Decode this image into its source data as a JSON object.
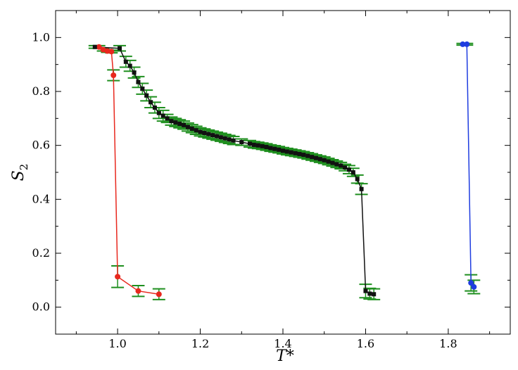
{
  "chart_data": {
    "type": "line",
    "xlabel": "T*",
    "ylabel_main": "S",
    "ylabel_sub": "2",
    "xlim": [
      0.85,
      1.95
    ],
    "ylim": [
      -0.1,
      1.1
    ],
    "xticks": [
      1.0,
      1.2,
      1.4,
      1.6,
      1.8
    ],
    "xtick_labels": [
      "1.0",
      "1.2",
      "1.4",
      "1.6",
      "1.8"
    ],
    "yticks": [
      0.0,
      0.2,
      0.4,
      0.6,
      0.8,
      1.0
    ],
    "ytick_labels": [
      "0.0",
      "0.2",
      "0.4",
      "0.6",
      "0.8",
      "1.0"
    ],
    "grid": false,
    "errorbar_color": "#1f8f1f",
    "series": [
      {
        "color": "#e8281e",
        "marker": "circle",
        "x": [
          0.955,
          0.965,
          0.975,
          0.985,
          0.99,
          1.0,
          1.05,
          1.1
        ],
        "y": [
          0.965,
          0.955,
          0.95,
          0.948,
          0.86,
          0.113,
          0.06,
          0.048
        ],
        "err": [
          0.005,
          0.005,
          0.005,
          0.005,
          0.02,
          0.04,
          0.02,
          0.02
        ]
      },
      {
        "color": "#111111",
        "marker": "square",
        "x": [
          0.945,
          1.005,
          1.02,
          1.03,
          1.04,
          1.05,
          1.06,
          1.07,
          1.08,
          1.09,
          1.1,
          1.11,
          1.12,
          1.13,
          1.14,
          1.15,
          1.16,
          1.17,
          1.18,
          1.19,
          1.2,
          1.21,
          1.22,
          1.23,
          1.24,
          1.25,
          1.26,
          1.27,
          1.28,
          1.3,
          1.32,
          1.33,
          1.34,
          1.35,
          1.36,
          1.37,
          1.38,
          1.39,
          1.4,
          1.41,
          1.42,
          1.43,
          1.44,
          1.45,
          1.46,
          1.47,
          1.48,
          1.49,
          1.5,
          1.51,
          1.52,
          1.53,
          1.54,
          1.55,
          1.56,
          1.57,
          1.58,
          1.59,
          1.6,
          1.61,
          1.62
        ],
        "y": [
          0.965,
          0.96,
          0.91,
          0.895,
          0.87,
          0.835,
          0.81,
          0.785,
          0.76,
          0.74,
          0.72,
          0.71,
          0.7,
          0.69,
          0.685,
          0.68,
          0.675,
          0.668,
          0.662,
          0.656,
          0.65,
          0.646,
          0.642,
          0.638,
          0.634,
          0.63,
          0.626,
          0.622,
          0.618,
          0.612,
          0.606,
          0.602,
          0.6,
          0.597,
          0.594,
          0.59,
          0.587,
          0.584,
          0.58,
          0.577,
          0.574,
          0.571,
          0.568,
          0.565,
          0.561,
          0.557,
          0.553,
          0.549,
          0.545,
          0.54,
          0.535,
          0.53,
          0.525,
          0.518,
          0.51,
          0.5,
          0.475,
          0.438,
          0.06,
          0.05,
          0.048
        ],
        "err": [
          0.005,
          0.01,
          0.02,
          0.02,
          0.02,
          0.02,
          0.02,
          0.02,
          0.02,
          0.02,
          0.02,
          0.02,
          0.015,
          0.015,
          0.015,
          0.015,
          0.015,
          0.015,
          0.015,
          0.015,
          0.015,
          0.015,
          0.015,
          0.015,
          0.015,
          0.015,
          0.015,
          0.015,
          0.015,
          0.012,
          0.012,
          0.012,
          0.012,
          0.012,
          0.012,
          0.012,
          0.012,
          0.012,
          0.012,
          0.012,
          0.012,
          0.012,
          0.012,
          0.012,
          0.012,
          0.012,
          0.012,
          0.012,
          0.012,
          0.012,
          0.012,
          0.012,
          0.012,
          0.012,
          0.015,
          0.015,
          0.015,
          0.02,
          0.025,
          0.02,
          0.02
        ]
      },
      {
        "color": "#1e3ce0",
        "marker": "circle",
        "x": [
          1.835,
          1.845,
          1.855,
          1.862
        ],
        "y": [
          0.975,
          0.975,
          0.09,
          0.075
        ],
        "err": [
          0.003,
          0.003,
          0.03,
          0.025
        ]
      }
    ]
  }
}
